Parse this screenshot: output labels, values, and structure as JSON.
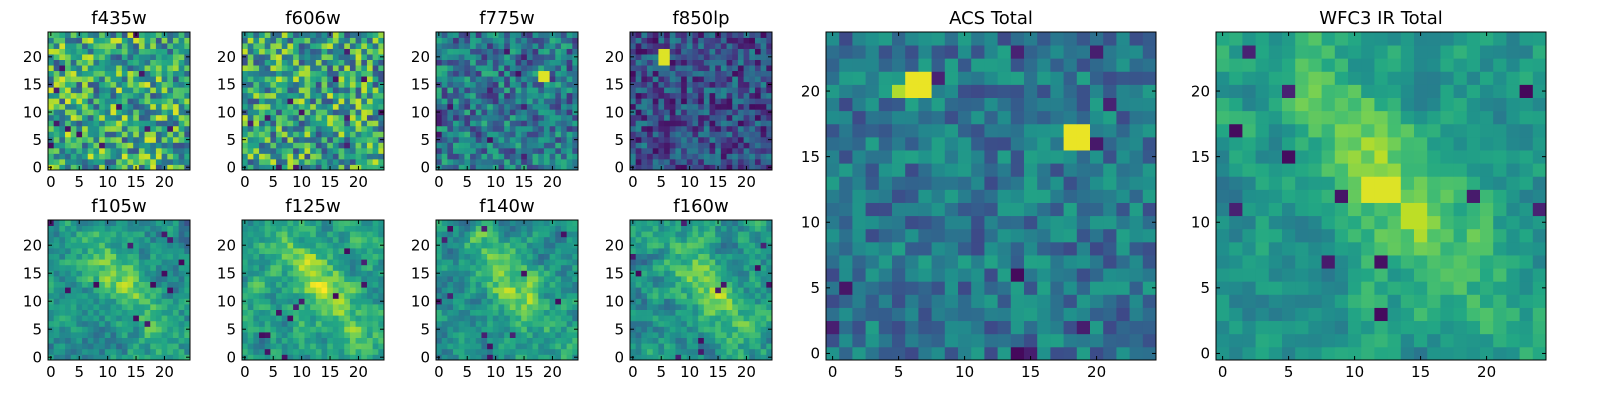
{
  "chart_data": [
    {
      "type": "heatmap",
      "title": "f435w",
      "grid": false,
      "colormap": "viridis",
      "xlim": [
        0,
        24
      ],
      "ylim": [
        0,
        24
      ],
      "xticks": [
        0,
        5,
        10,
        15,
        20
      ],
      "yticks": [
        0,
        5,
        10,
        15,
        20
      ],
      "texture": "noise",
      "base": 0.6,
      "spread": 0.35,
      "seed": 11,
      "features": []
    },
    {
      "type": "heatmap",
      "title": "f606w",
      "grid": false,
      "colormap": "viridis",
      "xlim": [
        0,
        24
      ],
      "ylim": [
        0,
        24
      ],
      "xticks": [
        0,
        5,
        10,
        15,
        20
      ],
      "yticks": [
        0,
        5,
        10,
        15,
        20
      ],
      "texture": "noise",
      "base": 0.58,
      "spread": 0.35,
      "seed": 23,
      "features": []
    },
    {
      "type": "heatmap",
      "title": "f775w",
      "grid": false,
      "colormap": "viridis",
      "xlim": [
        0,
        24
      ],
      "ylim": [
        0,
        24
      ],
      "xticks": [
        0,
        5,
        10,
        15,
        20
      ],
      "yticks": [
        0,
        5,
        10,
        15,
        20
      ],
      "texture": "noise",
      "base": 0.4,
      "spread": 0.25,
      "seed": 37,
      "features": [
        {
          "x": 18,
          "y": 16,
          "w": 2,
          "h": 2,
          "v": 0.95
        }
      ]
    },
    {
      "type": "heatmap",
      "title": "f850lp",
      "grid": false,
      "colormap": "viridis",
      "xlim": [
        0,
        24
      ],
      "ylim": [
        0,
        24
      ],
      "xticks": [
        0,
        5,
        10,
        15,
        20
      ],
      "yticks": [
        0,
        5,
        10,
        15,
        20
      ],
      "texture": "noise",
      "base": 0.25,
      "spread": 0.22,
      "seed": 41,
      "features": [
        {
          "x": 5,
          "y": 19,
          "w": 2,
          "h": 3,
          "v": 0.95
        }
      ]
    },
    {
      "type": "heatmap",
      "title": "f105w",
      "grid": false,
      "colormap": "viridis",
      "xlim": [
        0,
        24
      ],
      "ylim": [
        0,
        24
      ],
      "xticks": [
        0,
        5,
        10,
        15,
        20
      ],
      "yticks": [
        0,
        5,
        10,
        15,
        20
      ],
      "texture": "blob",
      "base": 0.5,
      "spread": 0.3,
      "seed": 53,
      "features": []
    },
    {
      "type": "heatmap",
      "title": "f125w",
      "grid": false,
      "colormap": "viridis",
      "xlim": [
        0,
        24
      ],
      "ylim": [
        0,
        24
      ],
      "xticks": [
        0,
        5,
        10,
        15,
        20
      ],
      "yticks": [
        0,
        5,
        10,
        15,
        20
      ],
      "texture": "blob",
      "base": 0.55,
      "spread": 0.3,
      "seed": 67,
      "features": []
    },
    {
      "type": "heatmap",
      "title": "f140w",
      "grid": false,
      "colormap": "viridis",
      "xlim": [
        0,
        24
      ],
      "ylim": [
        0,
        24
      ],
      "xticks": [
        0,
        5,
        10,
        15,
        20
      ],
      "yticks": [
        0,
        5,
        10,
        15,
        20
      ],
      "texture": "blob",
      "base": 0.5,
      "spread": 0.3,
      "seed": 71,
      "features": []
    },
    {
      "type": "heatmap",
      "title": "f160w",
      "grid": false,
      "colormap": "viridis",
      "xlim": [
        0,
        24
      ],
      "ylim": [
        0,
        24
      ],
      "xticks": [
        0,
        5,
        10,
        15,
        20
      ],
      "yticks": [
        0,
        5,
        10,
        15,
        20
      ],
      "texture": "blob",
      "base": 0.5,
      "spread": 0.3,
      "seed": 83,
      "features": []
    },
    {
      "type": "heatmap",
      "title": "ACS Total",
      "grid": false,
      "colormap": "viridis",
      "xlim": [
        0,
        24
      ],
      "ylim": [
        0,
        24
      ],
      "xticks": [
        0,
        5,
        10,
        15,
        20
      ],
      "yticks": [
        0,
        5,
        10,
        15,
        20
      ],
      "texture": "noise",
      "base": 0.4,
      "spread": 0.18,
      "seed": 97,
      "features": [
        {
          "x": 6,
          "y": 20,
          "w": 2,
          "h": 2,
          "v": 0.97
        },
        {
          "x": 5,
          "y": 20,
          "w": 1,
          "h": 1,
          "v": 0.88
        },
        {
          "x": 18,
          "y": 16,
          "w": 2,
          "h": 2,
          "v": 0.97
        }
      ]
    },
    {
      "type": "heatmap",
      "title": "WFC3 IR Total",
      "grid": false,
      "colormap": "viridis",
      "xlim": [
        0,
        24
      ],
      "ylim": [
        0,
        24
      ],
      "xticks": [
        0,
        5,
        10,
        15,
        20
      ],
      "yticks": [
        0,
        5,
        10,
        15,
        20
      ],
      "texture": "blob",
      "base": 0.52,
      "spread": 0.22,
      "seed": 101,
      "features": [
        {
          "x": 11,
          "y": 12,
          "w": 3,
          "h": 2,
          "v": 0.95
        },
        {
          "x": 14,
          "y": 10,
          "w": 2,
          "h": 2,
          "v": 0.9
        }
      ]
    }
  ]
}
